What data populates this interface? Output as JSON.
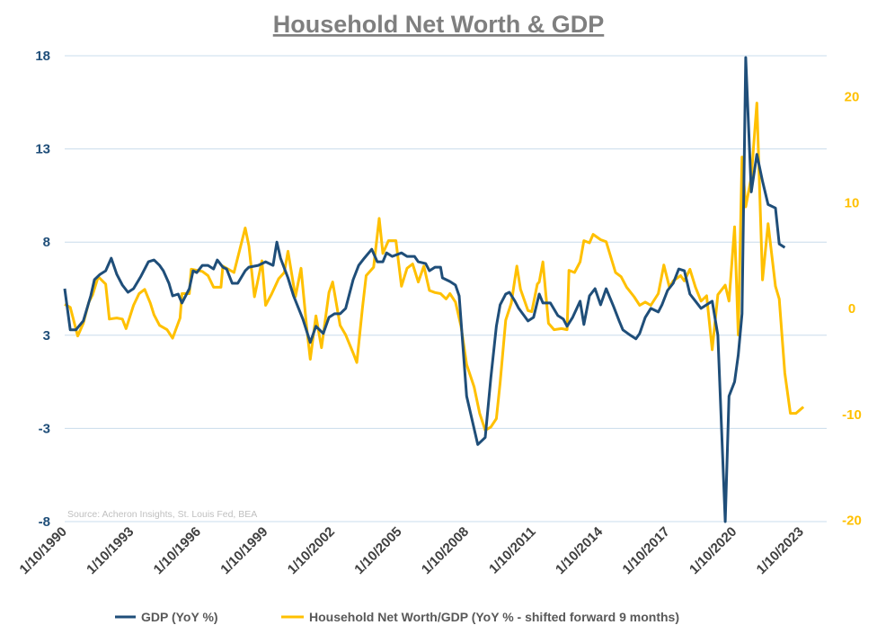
{
  "chart_data": {
    "type": "line",
    "title": "Household Net Worth & GDP",
    "source": "Source: Acheron Insights, St. Louis Fed, BEA",
    "colors": {
      "gdp": "#1f4e79",
      "networth": "#ffc000",
      "grid": "#c9dcec",
      "title": "#7f7f7f"
    },
    "grid": true,
    "legend_position": "bottom",
    "x_tick_labels": [
      "1/10/1990",
      "1/10/1993",
      "1/10/1996",
      "1/10/1999",
      "1/10/2002",
      "1/10/2005",
      "1/10/2008",
      "1/10/2011",
      "1/10/2014",
      "1/10/2017",
      "1/10/2020",
      "1/10/2023"
    ],
    "y_left": {
      "ylim": [
        -8,
        18
      ],
      "tick_labels": [
        "18",
        "13",
        "8",
        "3",
        "-3",
        "-8"
      ]
    },
    "y_right": {
      "ylim": [
        -20,
        24
      ],
      "tick_labels": [
        "20",
        "10",
        "0",
        "-10",
        "-20"
      ],
      "tick_values": [
        20,
        10,
        0,
        -10,
        -20
      ]
    },
    "series": [
      {
        "name": "GDP (YoY %)",
        "axis": "left",
        "points": [
          [
            "1990-10",
            5.0
          ],
          [
            "1991-01",
            2.7
          ],
          [
            "1991-04",
            2.7
          ],
          [
            "1991-08",
            3.2
          ],
          [
            "1991-12",
            4.6
          ],
          [
            "1992-02",
            5.5
          ],
          [
            "1992-05",
            5.8
          ],
          [
            "1992-08",
            6.0
          ],
          [
            "1992-11",
            6.7
          ],
          [
            "1993-02",
            5.8
          ],
          [
            "1993-05",
            5.2
          ],
          [
            "1993-08",
            4.8
          ],
          [
            "1993-11",
            5.0
          ],
          [
            "1994-03",
            5.7
          ],
          [
            "1994-07",
            6.5
          ],
          [
            "1994-10",
            6.6
          ],
          [
            "1995-01",
            6.3
          ],
          [
            "1995-03",
            6.0
          ],
          [
            "1995-06",
            5.3
          ],
          [
            "1995-08",
            4.6
          ],
          [
            "1995-11",
            4.7
          ],
          [
            "1996-01",
            4.2
          ],
          [
            "1996-05",
            5.0
          ],
          [
            "1996-07",
            6.0
          ],
          [
            "1996-09",
            5.9
          ],
          [
            "1996-12",
            6.3
          ],
          [
            "1997-03",
            6.3
          ],
          [
            "1997-06",
            6.1
          ],
          [
            "1997-08",
            6.6
          ],
          [
            "1997-11",
            6.2
          ],
          [
            "1998-01",
            6.1
          ],
          [
            "1998-04",
            5.3
          ],
          [
            "1998-07",
            5.3
          ],
          [
            "1998-11",
            6.0
          ],
          [
            "1999-01",
            6.2
          ],
          [
            "1999-06",
            6.3
          ],
          [
            "1999-10",
            6.5
          ],
          [
            "2000-02",
            6.3
          ],
          [
            "2000-04",
            7.6
          ],
          [
            "2000-06",
            6.7
          ],
          [
            "2000-10",
            5.6
          ],
          [
            "2001-01",
            4.6
          ],
          [
            "2001-06",
            3.3
          ],
          [
            "2001-10",
            2.0
          ],
          [
            "2002-01",
            2.9
          ],
          [
            "2002-05",
            2.5
          ],
          [
            "2002-08",
            3.4
          ],
          [
            "2002-11",
            3.6
          ],
          [
            "2003-02",
            3.6
          ],
          [
            "2003-05",
            3.9
          ],
          [
            "2003-09",
            5.5
          ],
          [
            "2003-12",
            6.3
          ],
          [
            "2004-03",
            6.7
          ],
          [
            "2004-07",
            7.2
          ],
          [
            "2004-10",
            6.5
          ],
          [
            "2005-01",
            6.5
          ],
          [
            "2005-03",
            7.0
          ],
          [
            "2005-06",
            6.8
          ],
          [
            "2005-11",
            7.0
          ],
          [
            "2006-02",
            6.8
          ],
          [
            "2006-06",
            6.8
          ],
          [
            "2006-08",
            6.5
          ],
          [
            "2006-12",
            6.4
          ],
          [
            "2007-02",
            6.0
          ],
          [
            "2007-05",
            6.2
          ],
          [
            "2007-08",
            6.2
          ],
          [
            "2007-09",
            5.6
          ],
          [
            "2008-01",
            5.4
          ],
          [
            "2008-04",
            5.2
          ],
          [
            "2008-06",
            4.6
          ],
          [
            "2008-10",
            -1.0
          ],
          [
            "2009-04",
            -3.7
          ],
          [
            "2009-08",
            -3.3
          ],
          [
            "2009-11",
            0.0
          ],
          [
            "2010-02",
            2.9
          ],
          [
            "2010-04",
            4.1
          ],
          [
            "2010-07",
            4.7
          ],
          [
            "2010-09",
            4.8
          ],
          [
            "2010-12",
            4.3
          ],
          [
            "2011-02",
            3.9
          ],
          [
            "2011-07",
            3.2
          ],
          [
            "2011-10",
            3.4
          ],
          [
            "2012-01",
            4.7
          ],
          [
            "2012-03",
            4.2
          ],
          [
            "2012-07",
            4.2
          ],
          [
            "2012-11",
            3.5
          ],
          [
            "2013-02",
            3.3
          ],
          [
            "2013-04",
            2.9
          ],
          [
            "2013-07",
            3.4
          ],
          [
            "2013-11",
            4.3
          ],
          [
            "2014-01",
            3.0
          ],
          [
            "2014-04",
            4.6
          ],
          [
            "2014-07",
            5.0
          ],
          [
            "2014-10",
            4.1
          ],
          [
            "2015-01",
            5.0
          ],
          [
            "2015-05",
            4.0
          ],
          [
            "2015-08",
            3.2
          ],
          [
            "2015-10",
            2.7
          ],
          [
            "2016-02",
            2.4
          ],
          [
            "2016-05",
            2.2
          ],
          [
            "2016-07",
            2.5
          ],
          [
            "2016-10",
            3.4
          ],
          [
            "2017-01",
            3.9
          ],
          [
            "2017-05",
            3.7
          ],
          [
            "2017-07",
            4.1
          ],
          [
            "2017-10",
            4.9
          ],
          [
            "2018-01",
            5.3
          ],
          [
            "2018-04",
            6.1
          ],
          [
            "2018-07",
            6.0
          ],
          [
            "2018-10",
            4.7
          ],
          [
            "2019-01",
            4.3
          ],
          [
            "2019-04",
            3.9
          ],
          [
            "2019-07",
            4.1
          ],
          [
            "2019-10",
            4.3
          ],
          [
            "2020-01",
            2.4
          ],
          [
            "2020-05",
            -8.0
          ],
          [
            "2020-07",
            -1.0
          ],
          [
            "2020-10",
            -0.2
          ],
          [
            "2020-12",
            1.3
          ],
          [
            "2021-02",
            3.6
          ],
          [
            "2021-04",
            17.9
          ],
          [
            "2021-07",
            10.4
          ],
          [
            "2021-10",
            12.5
          ],
          [
            "2022-01",
            11.0
          ],
          [
            "2022-04",
            9.7
          ],
          [
            "2022-08",
            9.5
          ],
          [
            "2022-10",
            7.5
          ],
          [
            "2023-01",
            7.3
          ]
        ]
      },
      {
        "name": "Household Net Worth/GDP (YoY % - shifted forward 9 months)",
        "axis": "right",
        "points": [
          [
            "1990-10",
            0.4
          ],
          [
            "1991-01",
            0.1
          ],
          [
            "1991-05",
            -2.6
          ],
          [
            "1991-08",
            -1.4
          ],
          [
            "1991-11",
            0.6
          ],
          [
            "1992-01",
            1.3
          ],
          [
            "1992-04",
            3.0
          ],
          [
            "1992-08",
            2.3
          ],
          [
            "1992-10",
            -1.0
          ],
          [
            "1993-02",
            -0.9
          ],
          [
            "1993-05",
            -1.0
          ],
          [
            "1993-07",
            -1.9
          ],
          [
            "1993-11",
            0.3
          ],
          [
            "1994-02",
            1.4
          ],
          [
            "1994-05",
            1.8
          ],
          [
            "1994-08",
            0.5
          ],
          [
            "1994-10",
            -0.6
          ],
          [
            "1995-01",
            -1.6
          ],
          [
            "1995-05",
            -2.0
          ],
          [
            "1995-08",
            -2.8
          ],
          [
            "1995-12",
            -0.9
          ],
          [
            "1996-01",
            1.4
          ],
          [
            "1996-05",
            1.4
          ],
          [
            "1996-06",
            3.7
          ],
          [
            "1996-09",
            3.6
          ],
          [
            "1996-12",
            3.5
          ],
          [
            "1997-03",
            3.1
          ],
          [
            "1997-06",
            2.0
          ],
          [
            "1997-10",
            2.0
          ],
          [
            "1997-11",
            4.0
          ],
          [
            "1998-02",
            3.7
          ],
          [
            "1998-05",
            3.4
          ],
          [
            "1998-11",
            7.6
          ],
          [
            "1999-01",
            5.9
          ],
          [
            "1999-04",
            1.1
          ],
          [
            "1999-08",
            4.5
          ],
          [
            "1999-10",
            0.3
          ],
          [
            "2000-01",
            1.3
          ],
          [
            "2000-05",
            2.8
          ],
          [
            "2000-08",
            3.4
          ],
          [
            "2000-10",
            5.4
          ],
          [
            "2001-02",
            1.1
          ],
          [
            "2001-05",
            3.8
          ],
          [
            "2001-08",
            -1.7
          ],
          [
            "2001-10",
            -4.8
          ],
          [
            "2002-01",
            -0.7
          ],
          [
            "2002-04",
            -3.7
          ],
          [
            "2002-08",
            1.5
          ],
          [
            "2002-10",
            2.5
          ],
          [
            "2003-02",
            -1.6
          ],
          [
            "2003-05",
            -2.5
          ],
          [
            "2003-09",
            -4.2
          ],
          [
            "2003-11",
            -5.1
          ],
          [
            "2004-02",
            0.0
          ],
          [
            "2004-04",
            3.1
          ],
          [
            "2004-08",
            3.9
          ],
          [
            "2004-11",
            8.5
          ],
          [
            "2005-01",
            5.2
          ],
          [
            "2005-04",
            6.4
          ],
          [
            "2005-08",
            6.4
          ],
          [
            "2005-11",
            2.1
          ],
          [
            "2006-02",
            3.8
          ],
          [
            "2006-05",
            4.2
          ],
          [
            "2006-08",
            2.5
          ],
          [
            "2006-11",
            4.0
          ],
          [
            "2007-02",
            1.7
          ],
          [
            "2007-05",
            1.5
          ],
          [
            "2007-08",
            1.4
          ],
          [
            "2007-11",
            0.9
          ],
          [
            "2008-01",
            1.4
          ],
          [
            "2008-04",
            0.6
          ],
          [
            "2008-07",
            -1.7
          ],
          [
            "2008-10",
            -5.3
          ],
          [
            "2009-02",
            -7.4
          ],
          [
            "2009-05",
            -9.9
          ],
          [
            "2009-08",
            -11.5
          ],
          [
            "2009-11",
            -11.2
          ],
          [
            "2010-02",
            -10.4
          ],
          [
            "2010-04",
            -7.0
          ],
          [
            "2010-07",
            -1.1
          ],
          [
            "2010-10",
            0.5
          ],
          [
            "2011-01",
            4.0
          ],
          [
            "2011-03",
            1.8
          ],
          [
            "2011-07",
            -0.2
          ],
          [
            "2011-09",
            -0.3
          ],
          [
            "2011-12",
            2.3
          ],
          [
            "2012-01",
            2.5
          ],
          [
            "2012-03",
            4.4
          ],
          [
            "2012-06",
            -1.4
          ],
          [
            "2012-09",
            -2.0
          ],
          [
            "2013-01",
            -1.9
          ],
          [
            "2013-04",
            -2.0
          ],
          [
            "2013-05",
            3.6
          ],
          [
            "2013-08",
            3.4
          ],
          [
            "2013-11",
            4.4
          ],
          [
            "2014-01",
            6.4
          ],
          [
            "2014-04",
            6.2
          ],
          [
            "2014-06",
            7.0
          ],
          [
            "2014-10",
            6.5
          ],
          [
            "2015-01",
            6.3
          ],
          [
            "2015-06",
            3.4
          ],
          [
            "2015-09",
            3.0
          ],
          [
            "2015-12",
            2.0
          ],
          [
            "2016-04",
            1.1
          ],
          [
            "2016-07",
            0.3
          ],
          [
            "2016-10",
            0.6
          ],
          [
            "2017-01",
            0.3
          ],
          [
            "2017-05",
            1.4
          ],
          [
            "2017-08",
            4.1
          ],
          [
            "2017-11",
            2.0
          ],
          [
            "2018-01",
            2.6
          ],
          [
            "2018-05",
            3.1
          ],
          [
            "2018-07",
            2.6
          ],
          [
            "2018-10",
            3.7
          ],
          [
            "2019-01",
            2.0
          ],
          [
            "2019-04",
            0.7
          ],
          [
            "2019-07",
            1.2
          ],
          [
            "2019-10",
            -3.9
          ],
          [
            "2020-01",
            1.3
          ],
          [
            "2020-05",
            2.2
          ],
          [
            "2020-07",
            0.7
          ],
          [
            "2020-10",
            7.7
          ],
          [
            "2020-12",
            -2.5
          ],
          [
            "2021-02",
            14.3
          ],
          [
            "2021-04",
            9.6
          ],
          [
            "2021-07",
            12.4
          ],
          [
            "2021-10",
            19.4
          ],
          [
            "2022-01",
            2.7
          ],
          [
            "2022-04",
            8.0
          ],
          [
            "2022-08",
            2.1
          ],
          [
            "2022-10",
            0.9
          ],
          [
            "2023-01",
            -6.1
          ],
          [
            "2023-04",
            -9.9
          ],
          [
            "2023-07",
            -9.9
          ],
          [
            "2023-11",
            -9.3
          ]
        ]
      }
    ]
  }
}
